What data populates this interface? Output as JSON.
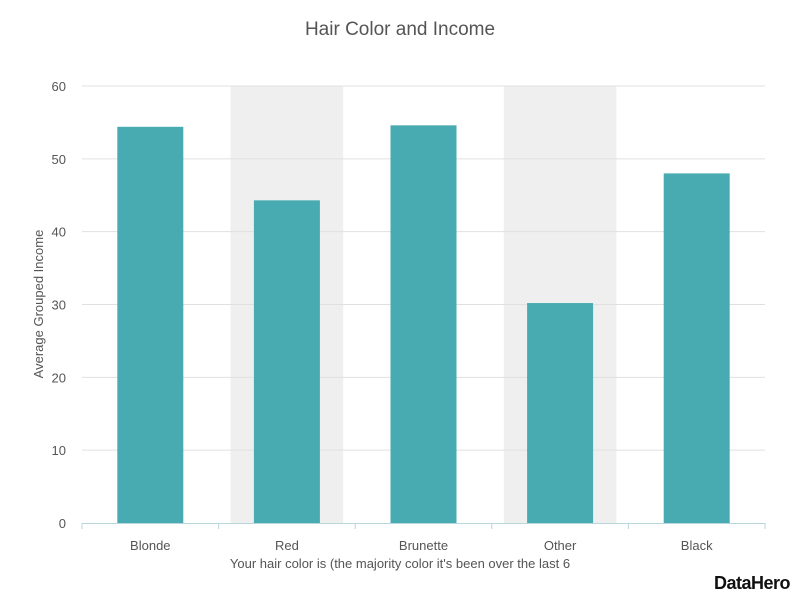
{
  "brand": "DataHero",
  "colors": {
    "bar": "#47abb1",
    "band": "#efefef",
    "grid": "#e0e0e0",
    "axis": "#b8d6dc",
    "text": "#555555"
  },
  "chart_data": {
    "type": "bar",
    "title": "Hair Color and Income",
    "xlabel": "Your hair color is (the majority color it's been over the last 6",
    "ylabel": "Average Grouped Income",
    "categories": [
      "Blonde",
      "Red",
      "Brunette",
      "Other",
      "Black"
    ],
    "values": [
      54.4,
      44.3,
      54.6,
      30.2,
      48.0
    ],
    "ylim": [
      0,
      60
    ],
    "yticks": [
      0,
      10,
      20,
      30,
      40,
      50,
      60
    ],
    "grid": true,
    "legend": "none"
  }
}
